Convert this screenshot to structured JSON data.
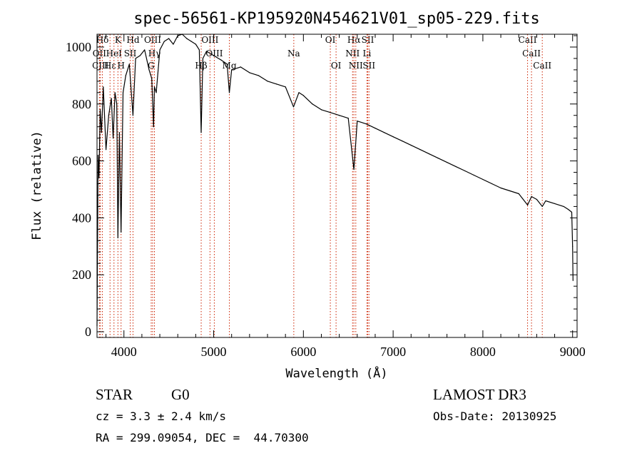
{
  "chart_data": {
    "type": "line",
    "title": "spec-56561-KP195920N454621V01_sp05-229.fits",
    "xlabel": "Wavelength (Å)",
    "ylabel": "Flux (relative)",
    "xlim": [
      3700,
      9050
    ],
    "ylim": [
      -20,
      1045
    ],
    "x_ticks": [
      4000,
      5000,
      6000,
      7000,
      8000,
      9000
    ],
    "y_ticks": [
      0,
      200,
      400,
      600,
      800,
      1000
    ],
    "series": [
      {
        "name": "spectrum",
        "x": [
          3700,
          3712,
          3722,
          3735,
          3750,
          3770,
          3800,
          3830,
          3860,
          3880,
          3900,
          3920,
          3933,
          3950,
          3968,
          3990,
          4020,
          4060,
          4101,
          4130,
          4180,
          4230,
          4280,
          4300,
          4310,
          4330,
          4340,
          4360,
          4400,
          4450,
          4500,
          4550,
          4600,
          4650,
          4700,
          4750,
          4800,
          4840,
          4861,
          4880,
          4920,
          5000,
          5080,
          5150,
          5175,
          5200,
          5300,
          5400,
          5500,
          5600,
          5700,
          5800,
          5890,
          5950,
          6000,
          6100,
          6200,
          6300,
          6400,
          6500,
          6563,
          6600,
          6700,
          6800,
          6900,
          7000,
          7100,
          7200,
          7300,
          7400,
          7500,
          7600,
          7700,
          7800,
          7900,
          8000,
          8100,
          8200,
          8300,
          8400,
          8498,
          8542,
          8600,
          8662,
          8700,
          8800,
          8900,
          8950,
          8990,
          9000,
          9005
        ],
        "values": [
          20,
          620,
          540,
          780,
          700,
          860,
          640,
          760,
          820,
          680,
          840,
          800,
          330,
          700,
          350,
          840,
          900,
          940,
          760,
          960,
          970,
          990,
          920,
          900,
          890,
          720,
          860,
          840,
          990,
          1020,
          1030,
          1010,
          1040,
          1045,
          1030,
          1020,
          1010,
          990,
          700,
          960,
          985,
          970,
          955,
          940,
          840,
          920,
          930,
          910,
          900,
          880,
          870,
          860,
          790,
          840,
          830,
          800,
          780,
          770,
          760,
          750,
          570,
          740,
          730,
          715,
          700,
          685,
          670,
          655,
          640,
          625,
          610,
          595,
          580,
          565,
          550,
          535,
          520,
          505,
          495,
          485,
          445,
          475,
          465,
          440,
          460,
          450,
          440,
          430,
          420,
          300,
          180
        ]
      }
    ],
    "lines": [
      {
        "label": "Hδ",
        "x": 3760,
        "row": 0
      },
      {
        "label": "OII",
        "x": 3727,
        "row": 1
      },
      {
        "label": "CIII",
        "x": 3738,
        "row": 2
      },
      {
        "label": "Hε",
        "x": 3845,
        "row": 2
      },
      {
        "label": "HeI",
        "x": 3889,
        "row": 1
      },
      {
        "label": "K",
        "x": 3933,
        "row": 0
      },
      {
        "label": "H",
        "x": 3968,
        "row": 2
      },
      {
        "label": "SII",
        "x": 4070,
        "row": 1
      },
      {
        "label": "Hd",
        "x": 4101,
        "row": 0
      },
      {
        "label": "OIII",
        "x": 4320,
        "row": 0
      },
      {
        "label": "Hγ",
        "x": 4340,
        "row": 1
      },
      {
        "label": "G",
        "x": 4304,
        "row": 2
      },
      {
        "label": "Hβ",
        "x": 4861,
        "row": 2
      },
      {
        "label": "OIII",
        "x": 4959,
        "row": 0
      },
      {
        "label": "OIII",
        "x": 5007,
        "row": 1
      },
      {
        "label": "Mg",
        "x": 5175,
        "row": 2
      },
      {
        "label": "Na",
        "x": 5893,
        "row": 1
      },
      {
        "label": "OI",
        "x": 6300,
        "row": 0
      },
      {
        "label": "OI",
        "x": 6364,
        "row": 2
      },
      {
        "label": "Hα",
        "x": 6563,
        "row": 0
      },
      {
        "label": "NII",
        "x": 6548,
        "row": 1
      },
      {
        "label": "NII",
        "x": 6584,
        "row": 2
      },
      {
        "label": "SII",
        "x": 6717,
        "row": 0
      },
      {
        "label": "Li",
        "x": 6708,
        "row": 1
      },
      {
        "label": "SII",
        "x": 6731,
        "row": 2
      },
      {
        "label": "CaII",
        "x": 8498,
        "row": 0
      },
      {
        "label": "CaII",
        "x": 8542,
        "row": 1
      },
      {
        "label": "CaII",
        "x": 8662,
        "row": 2
      }
    ]
  },
  "info": {
    "class_label": "STAR",
    "subclass": "G0",
    "survey": "LAMOST DR3",
    "cz": "cz = 3.3 ± 2.4 km/s",
    "obs_date": "Obs-Date: 20130925",
    "coords": "RA = 299.09054, DEC =  44.70300"
  }
}
